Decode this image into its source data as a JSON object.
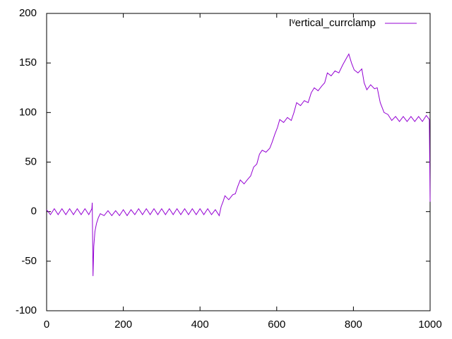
{
  "chart_data": {
    "type": "line",
    "x": [
      0,
      10,
      20,
      30,
      40,
      50,
      60,
      70,
      80,
      90,
      100,
      110,
      118,
      119,
      121,
      123,
      126,
      130,
      135,
      140,
      150,
      160,
      170,
      180,
      190,
      200,
      210,
      220,
      230,
      240,
      250,
      260,
      270,
      280,
      290,
      300,
      310,
      320,
      330,
      340,
      350,
      360,
      370,
      380,
      390,
      400,
      410,
      420,
      430,
      440,
      450,
      455,
      460,
      465,
      475,
      485,
      492,
      498,
      505,
      515,
      525,
      532,
      540,
      548,
      555,
      562,
      572,
      582,
      588,
      595,
      602,
      608,
      618,
      628,
      638,
      645,
      652,
      662,
      672,
      682,
      690,
      698,
      708,
      718,
      725,
      732,
      742,
      752,
      762,
      772,
      782,
      788,
      795,
      802,
      812,
      822,
      828,
      835,
      845,
      855,
      862,
      870,
      880,
      890,
      900,
      910,
      920,
      930,
      940,
      950,
      960,
      970,
      980,
      990,
      998,
      1000
    ],
    "series": [
      {
        "name": "Iᵛertical_currclamp",
        "color": "#9400d3",
        "values": [
          2,
          -3,
          3,
          -3,
          3,
          -3,
          3,
          -3,
          3,
          -3,
          3,
          -3,
          3,
          9,
          -65,
          -35,
          -20,
          -12,
          -6,
          -2,
          -4,
          1,
          -4,
          1,
          -4,
          2,
          -4,
          2,
          -3,
          3,
          -3,
          3,
          -3,
          3,
          -3,
          3,
          -3,
          3,
          -3,
          3,
          -3,
          3,
          -3,
          3,
          -3,
          3,
          -3,
          3,
          -3,
          2,
          -4,
          5,
          10,
          16,
          12,
          17,
          18,
          25,
          32,
          28,
          33,
          36,
          45,
          48,
          58,
          62,
          60,
          64,
          70,
          78,
          85,
          93,
          90,
          95,
          92,
          100,
          110,
          107,
          112,
          110,
          120,
          125,
          122,
          127,
          130,
          140,
          137,
          142,
          140,
          148,
          155,
          159,
          150,
          143,
          140,
          144,
          130,
          123,
          128,
          124,
          125,
          110,
          100,
          98,
          92,
          96,
          91,
          96,
          91,
          96,
          91,
          96,
          91,
          97,
          93,
          10
        ]
      }
    ],
    "xlim": [
      0,
      1000
    ],
    "xticks": [
      0,
      200,
      400,
      600,
      800,
      1000
    ],
    "ylim": [
      -100,
      200
    ],
    "yticks": [
      -100,
      -50,
      0,
      50,
      100,
      150,
      200
    ],
    "legend": "top-right"
  }
}
